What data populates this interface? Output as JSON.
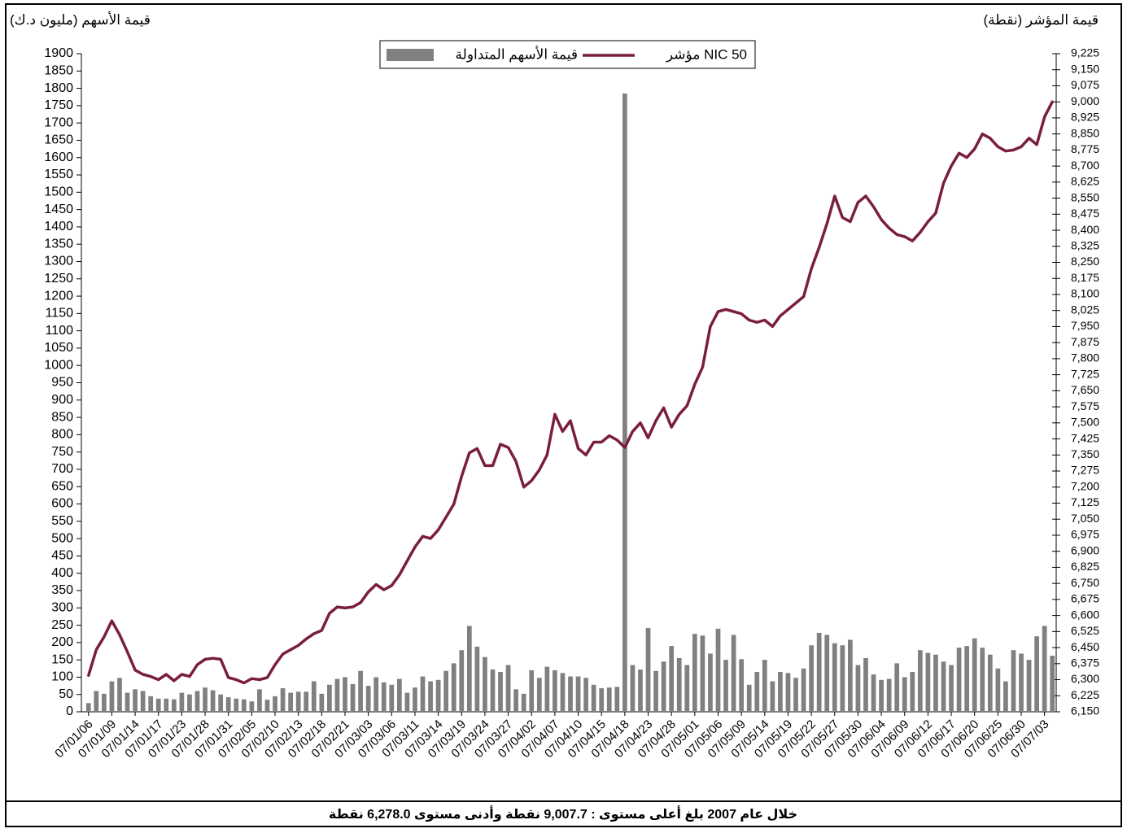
{
  "chart_data": {
    "type": "bar_line",
    "y_label": "قيمة الأسهم (مليون د.ك)",
    "y2_label": "قيمة المؤشر (نقطة)",
    "footer": "خلال عام 2007 بلغ أعلى مستوى : 9,007.7 نقطة وأدنى مستوى 6,278.0 نقطة",
    "categories": [
      "07/01/06",
      null,
      null,
      "07/01/09",
      null,
      null,
      "07/01/14",
      null,
      null,
      "07/01/17",
      null,
      null,
      "07/01/23",
      null,
      null,
      "07/01/28",
      null,
      null,
      "07/01/31",
      null,
      null,
      "07/02/05",
      null,
      null,
      "07/02/10",
      null,
      null,
      "07/02/13",
      null,
      null,
      "07/02/18",
      null,
      null,
      "07/02/21",
      null,
      null,
      "07/03/03",
      null,
      null,
      "07/03/06",
      null,
      null,
      "07/03/11",
      null,
      null,
      "07/03/14",
      null,
      null,
      "07/03/19",
      null,
      null,
      "07/03/24",
      null,
      null,
      "07/03/27",
      null,
      null,
      "07/04/02",
      null,
      null,
      "07/04/07",
      null,
      null,
      "07/04/10",
      null,
      null,
      "07/04/15",
      null,
      null,
      "07/04/18",
      null,
      null,
      "07/04/23",
      null,
      null,
      "07/04/28",
      null,
      null,
      "07/05/01",
      null,
      null,
      "07/05/06",
      null,
      null,
      "07/05/09",
      null,
      null,
      "07/05/14",
      null,
      null,
      "07/05/19",
      null,
      null,
      "07/05/22",
      null,
      null,
      "07/05/27",
      null,
      null,
      "07/05/30",
      null,
      null,
      "07/06/04",
      null,
      null,
      "07/06/09",
      null,
      null,
      "07/06/12",
      null,
      null,
      "07/06/17",
      null,
      null,
      "07/06/20",
      null,
      null,
      "07/06/25",
      null,
      null,
      "07/06/30",
      null,
      null,
      "07/07/03",
      null
    ],
    "series": [
      {
        "name": "قيمة الأسهم المتداولة",
        "type": "bar",
        "color": "#808080",
        "values": [
          25,
          60,
          52,
          88,
          98,
          55,
          65,
          60,
          45,
          38,
          38,
          36,
          55,
          50,
          60,
          70,
          62,
          50,
          42,
          38,
          36,
          30,
          65,
          35,
          45,
          68,
          55,
          58,
          58,
          88,
          52,
          78,
          95,
          100,
          80,
          118,
          75,
          100,
          85,
          78,
          95,
          55,
          70,
          102,
          88,
          92,
          118,
          140,
          178,
          248,
          188,
          158,
          122,
          115,
          135,
          65,
          52,
          120,
          98,
          130,
          120,
          112,
          102,
          102,
          98,
          78,
          68,
          70,
          72,
          1785,
          135,
          122,
          242,
          118,
          145,
          190,
          155,
          135,
          225,
          220,
          168,
          240,
          150,
          222,
          152,
          78,
          115,
          150,
          88,
          115,
          112,
          98,
          125,
          192,
          228,
          222,
          198,
          192,
          208,
          135,
          155,
          108,
          92,
          95,
          140,
          100,
          115,
          178,
          170,
          165,
          145,
          135,
          185,
          190,
          212,
          185,
          165,
          125,
          88,
          178,
          168,
          150,
          218,
          248,
          162
        ]
      },
      {
        "name": "مؤشر NIC 50",
        "type": "line",
        "axis": "y2",
        "color": "#7a1f3a",
        "values": [
          6320,
          6440,
          6500,
          6575,
          6510,
          6430,
          6345,
          6325,
          6315,
          6300,
          6325,
          6295,
          6325,
          6315,
          6370,
          6395,
          6400,
          6395,
          6310,
          6300,
          6285,
          6305,
          6300,
          6310,
          6370,
          6420,
          6440,
          6460,
          6490,
          6515,
          6530,
          6610,
          6640,
          6635,
          6640,
          6660,
          6710,
          6745,
          6720,
          6740,
          6790,
          6855,
          6920,
          6970,
          6960,
          7000,
          7060,
          7120,
          7250,
          7360,
          7380,
          7300,
          7300,
          7400,
          7385,
          7320,
          7200,
          7230,
          7280,
          7350,
          7540,
          7460,
          7510,
          7380,
          7350,
          7410,
          7410,
          7440,
          7420,
          7385,
          7460,
          7500,
          7430,
          7510,
          7570,
          7480,
          7540,
          7580,
          7680,
          7760,
          7950,
          8020,
          8030,
          8020,
          8010,
          7980,
          7970,
          7980,
          7950,
          8000,
          8030,
          8060,
          8090,
          8220,
          8320,
          8430,
          8560,
          8460,
          8440,
          8530,
          8560,
          8510,
          8450,
          8410,
          8380,
          8370,
          8350,
          8390,
          8440,
          8480,
          8620,
          8700,
          8760,
          8740,
          8780,
          8850,
          8830,
          8790,
          8770,
          8775,
          8790,
          8830,
          8800,
          8930,
          9000
        ]
      }
    ],
    "ylim": [
      0,
      1900
    ],
    "yticks": [
      0,
      50,
      100,
      150,
      200,
      250,
      300,
      350,
      400,
      450,
      500,
      550,
      600,
      650,
      700,
      750,
      800,
      850,
      900,
      950,
      1000,
      1050,
      1100,
      1150,
      1200,
      1250,
      1300,
      1350,
      1400,
      1450,
      1500,
      1550,
      1600,
      1650,
      1700,
      1750,
      1800,
      1850,
      1900
    ],
    "y2lim": [
      6150,
      9225
    ],
    "y2ticks": [
      {
        "value": 6150,
        "label": "6,150"
      },
      {
        "value": 6225,
        "label": "6,225"
      },
      {
        "value": 6300,
        "label": "6,300"
      },
      {
        "value": 6375,
        "label": "6,375"
      },
      {
        "value": 6450,
        "label": "6,450"
      },
      {
        "value": 6525,
        "label": "6,525"
      },
      {
        "value": 6600,
        "label": "6,600"
      },
      {
        "value": 6675,
        "label": "6,675"
      },
      {
        "value": 6750,
        "label": "6,750"
      },
      {
        "value": 6825,
        "label": "6,825"
      },
      {
        "value": 6900,
        "label": "6,900"
      },
      {
        "value": 6975,
        "label": "6,975"
      },
      {
        "value": 7050,
        "label": "7,050"
      },
      {
        "value": 7125,
        "label": "7,125"
      },
      {
        "value": 7200,
        "label": "7,200"
      },
      {
        "value": 7275,
        "label": "7,275"
      },
      {
        "value": 7350,
        "label": "7,350"
      },
      {
        "value": 7425,
        "label": "7,425"
      },
      {
        "value": 7500,
        "label": "7,500"
      },
      {
        "value": 7575,
        "label": "7,575"
      },
      {
        "value": 7650,
        "label": "7,650"
      },
      {
        "value": 7725,
        "label": "7,725"
      },
      {
        "value": 7800,
        "label": "7,800"
      },
      {
        "value": 7875,
        "label": "7,875"
      },
      {
        "value": 7950,
        "label": "7,950"
      },
      {
        "value": 8025,
        "label": "8,025"
      },
      {
        "value": 8100,
        "label": "8,100"
      },
      {
        "value": 8175,
        "label": "8,175"
      },
      {
        "value": 8250,
        "label": "8,250"
      },
      {
        "value": 8325,
        "label": "8,325"
      },
      {
        "value": 8400,
        "label": "8,400"
      },
      {
        "value": 8475,
        "label": "8,475"
      },
      {
        "value": 8550,
        "label": "8,550"
      },
      {
        "value": 8625,
        "label": "8,625"
      },
      {
        "value": 8700,
        "label": "8,700"
      },
      {
        "value": 8775,
        "label": "8,775"
      },
      {
        "value": 8850,
        "label": "8,850"
      },
      {
        "value": 8925,
        "label": "8,925"
      },
      {
        "value": 9000,
        "label": "9,000"
      },
      {
        "value": 9075,
        "label": "9,075"
      },
      {
        "value": 9150,
        "label": "9,150"
      },
      {
        "value": 9225,
        "label": "9,225"
      }
    ],
    "grid": false,
    "legend": "top"
  }
}
